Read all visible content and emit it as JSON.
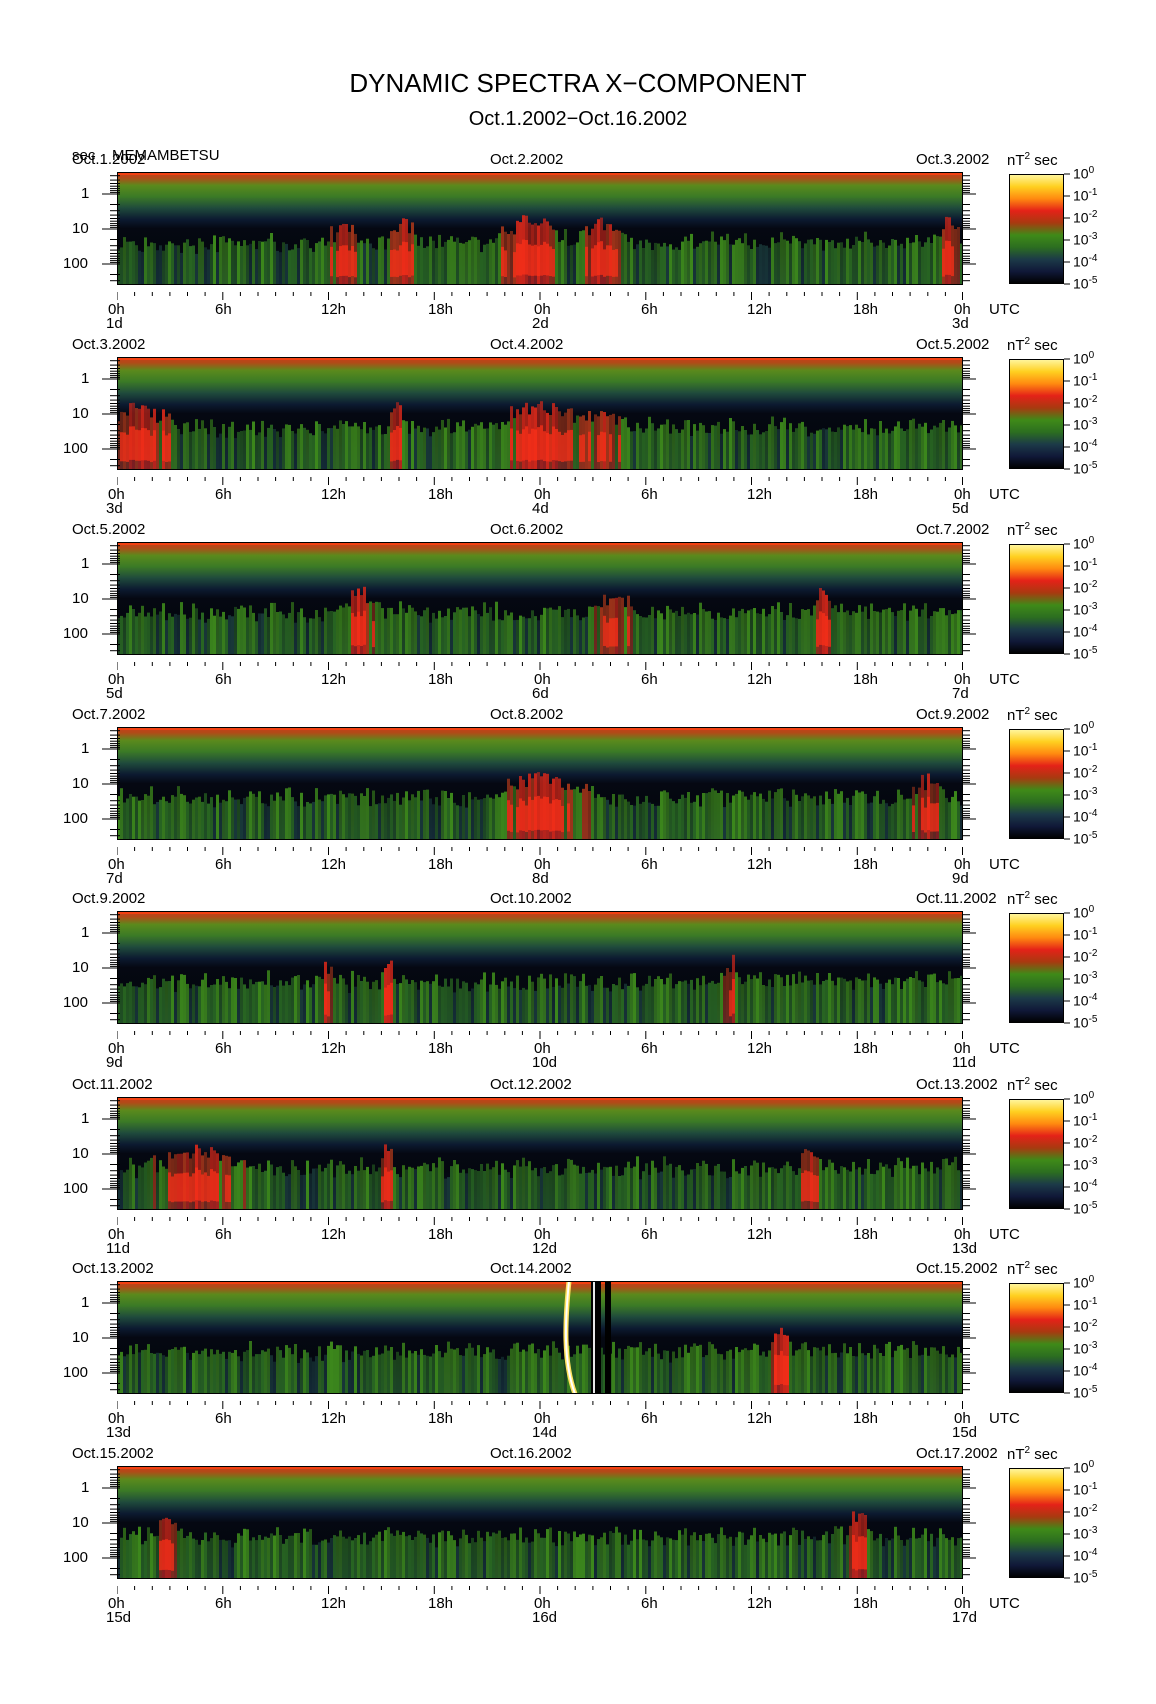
{
  "title": "DYNAMIC SPECTRA X−COMPONENT",
  "subtitle": "Oct.1.2002−Oct.16.2002",
  "station": {
    "unit": "sec",
    "name": "MEMAMBETSU"
  },
  "colorbar": {
    "unit_label": "nT² sec",
    "unit_base": "nT",
    "unit_exp": "2",
    "unit_rest": " sec",
    "levels": [
      {
        "base": "10",
        "exp": "0"
      },
      {
        "base": "10",
        "exp": "-1"
      },
      {
        "base": "10",
        "exp": "-2"
      },
      {
        "base": "10",
        "exp": "-3"
      },
      {
        "base": "10",
        "exp": "-4"
      },
      {
        "base": "10",
        "exp": "-5"
      }
    ],
    "colors": [
      "#fff6a0",
      "#ffd020",
      "#ff8a10",
      "#e42218",
      "#a83a10",
      "#3f8a18",
      "#2c6e20",
      "#1c3a48",
      "#101838",
      "#000000"
    ]
  },
  "chart_data": {
    "type": "heatmap",
    "title": "DYNAMIC SPECTRA X−COMPONENT",
    "subtitle": "Oct.1.2002−Oct.16.2002",
    "ylabel": "sec",
    "y_scale": "log",
    "y_ticks": [
      "1",
      "10",
      "100"
    ],
    "y_tick_values": [
      1,
      10,
      100
    ],
    "x_ticks": [
      "0h",
      "6h",
      "12h",
      "18h",
      "0h",
      "6h",
      "12h",
      "18h",
      "0h"
    ],
    "x_unit": "UTC",
    "colorbar_unit": "nT² sec",
    "colorbar_range": [
      1e-05,
      1
    ],
    "colorbar_scale": "log",
    "panels": [
      {
        "date_left": "Oct.1.2002",
        "date_mid": "Oct.2.2002",
        "date_right": "Oct.3.2002",
        "day_left": "1d",
        "day_mid": "2d",
        "day_right": "3d",
        "events": [
          [
            12.8,
            0.9,
            0.7
          ],
          [
            16.2,
            1.0,
            0.6
          ],
          [
            23.4,
            2.2,
            0.75
          ],
          [
            27.5,
            1.5,
            0.6
          ],
          [
            47.0,
            0.8,
            0.55
          ]
        ]
      },
      {
        "date_left": "Oct.3.2002",
        "date_mid": "Oct.4.2002",
        "date_right": "Oct.5.2002",
        "day_left": "3d",
        "day_mid": "4d",
        "day_right": "5d",
        "events": [
          [
            1.5,
            2.0,
            0.6
          ],
          [
            15.8,
            0.6,
            0.65
          ],
          [
            24.0,
            3.0,
            0.65
          ],
          [
            27.5,
            1.5,
            0.5
          ]
        ]
      },
      {
        "date_left": "Oct.5.2002",
        "date_mid": "Oct.6.2002",
        "date_right": "Oct.7.2002",
        "day_left": "5d",
        "day_mid": "6d",
        "day_right": "7d",
        "events": [
          [
            13.7,
            1.0,
            0.65
          ],
          [
            28.0,
            1.5,
            0.5
          ],
          [
            40.0,
            0.6,
            0.75
          ]
        ]
      },
      {
        "date_left": "Oct.7.2002",
        "date_mid": "Oct.8.2002",
        "date_right": "Oct.9.2002",
        "day_left": "7d",
        "day_mid": "8d",
        "day_right": "9d",
        "events": [
          [
            24.0,
            3.5,
            0.6
          ],
          [
            46.0,
            1.2,
            0.55
          ]
        ]
      },
      {
        "date_left": "Oct.9.2002",
        "date_mid": "Oct.10.2002",
        "date_right": "Oct.11.2002",
        "day_left": "9d",
        "day_mid": "10d",
        "day_right": "11d",
        "events": [
          [
            11.8,
            0.5,
            0.55
          ],
          [
            15.3,
            0.5,
            0.7
          ],
          [
            34.8,
            0.6,
            0.5
          ]
        ]
      },
      {
        "date_left": "Oct.11.2002",
        "date_mid": "Oct.12.2002",
        "date_right": "Oct.13.2002",
        "day_left": "11d",
        "day_mid": "12d",
        "day_right": "13d",
        "events": [
          [
            4.5,
            3.0,
            0.5
          ],
          [
            15.3,
            0.5,
            0.65
          ],
          [
            39.3,
            0.6,
            0.6
          ]
        ]
      },
      {
        "date_left": "Oct.13.2002",
        "date_mid": "Oct.14.2002",
        "date_right": "Oct.15.2002",
        "day_left": "13d",
        "day_mid": "14d",
        "day_right": "15d",
        "events": [
          [
            37.5,
            0.7,
            0.8
          ]
        ]
      },
      {
        "date_left": "Oct.15.2002",
        "date_mid": "Oct.16.2002",
        "date_right": "Oct.17.2002",
        "day_left": "15d",
        "day_mid": "16d",
        "day_right": "17d",
        "events": [
          [
            2.8,
            0.7,
            0.7
          ],
          [
            42.0,
            0.8,
            0.7
          ]
        ]
      }
    ]
  }
}
